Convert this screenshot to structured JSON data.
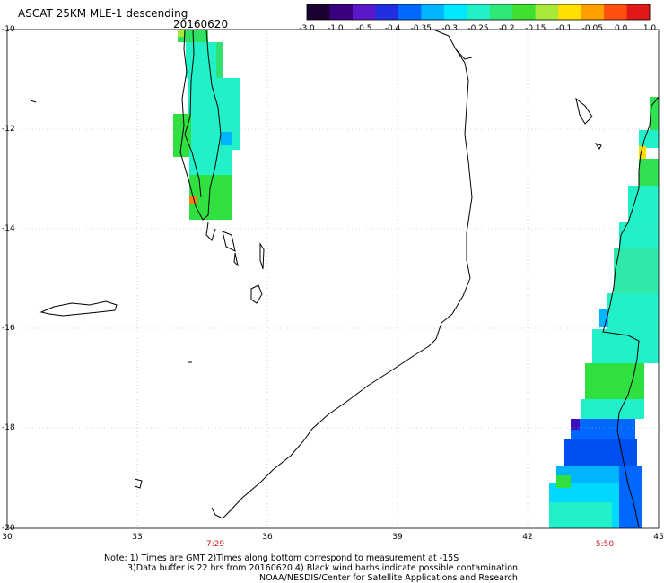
{
  "title": "ASCAT 25KM MLE-1 descending",
  "date": "20160620",
  "colorbar": {
    "labels": [
      "-3.0",
      "-1.0",
      "-0.5",
      "-0.4",
      "-0.35",
      "-0.3",
      "-0.25",
      "-0.2",
      "-0.15",
      "-0.1",
      "-0.05",
      "0.0",
      "1.0"
    ],
    "colors": [
      "#1a0033",
      "#3a0080",
      "#5a18c8",
      "#2030e0",
      "#0068ff",
      "#00b4ff",
      "#00e8ff",
      "#22f0c8",
      "#30e878",
      "#40e030",
      "#a8e838",
      "#ffe000",
      "#ffa000",
      "#ff5010",
      "#e01818"
    ]
  },
  "lat_labels": [
    "-10",
    "-12",
    "-14",
    "-16",
    "-18",
    "-20"
  ],
  "lon_labels": [
    "30",
    "33",
    "36",
    "39",
    "42",
    "45"
  ],
  "times": [
    "7:29",
    "5:50"
  ],
  "notes": [
    "Note: 1) Times are GMT 2)Times along bottom correspond to measurement at -15S",
    "3)Data buffer is 22 hrs from 20160620 4) Black wind barbs indicate possible contamination",
    "NOAA/NESDIS/Center for Satellite Applications and Research"
  ]
}
